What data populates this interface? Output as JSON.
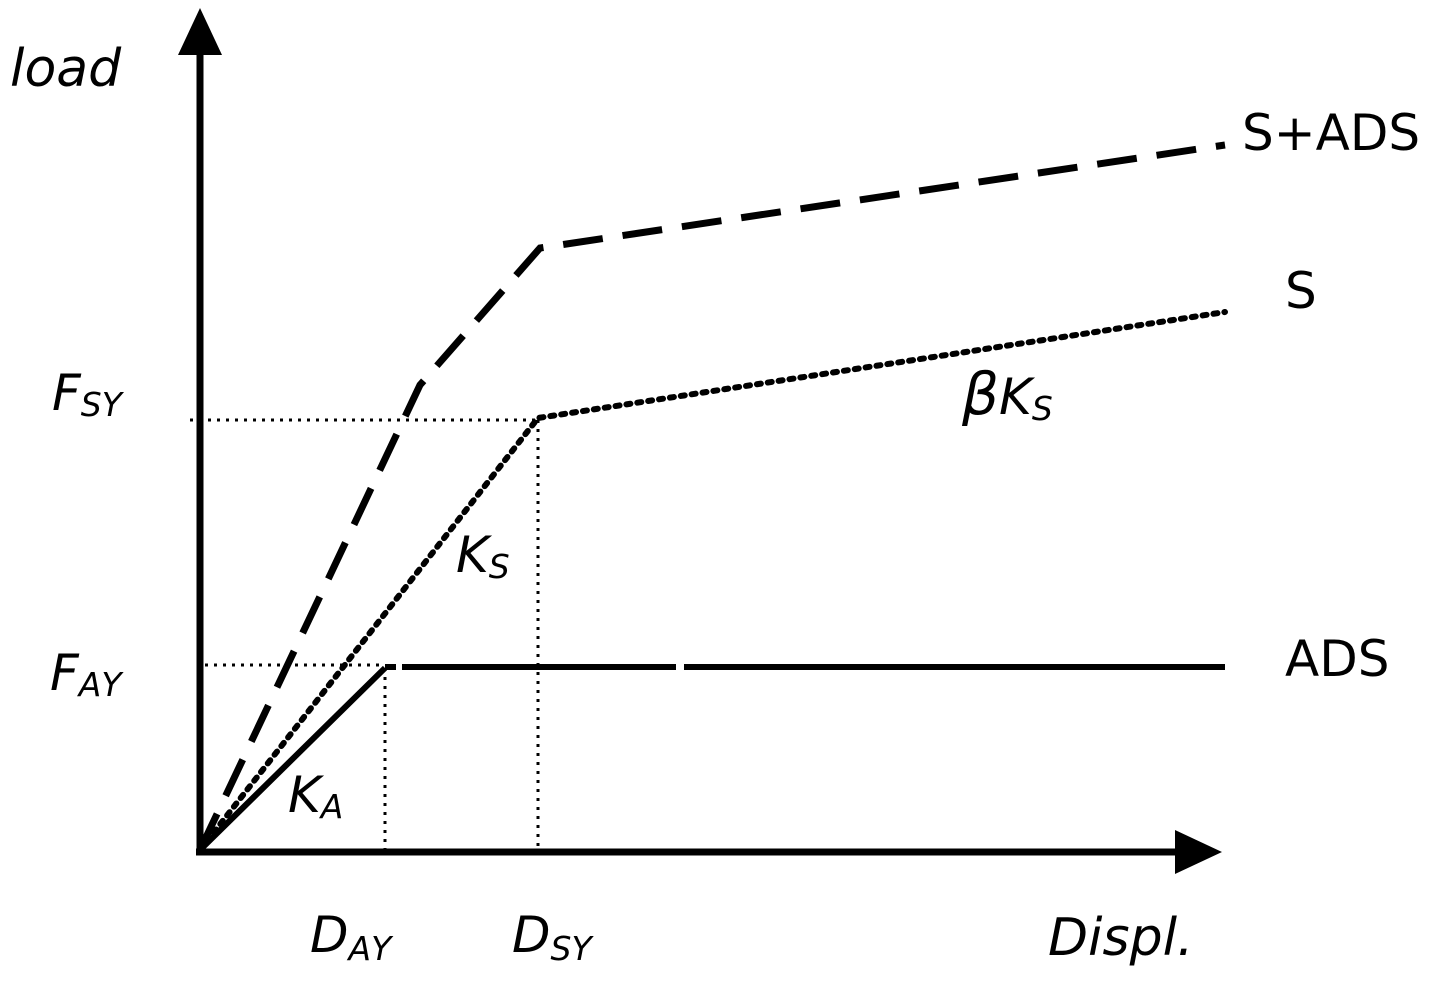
{
  "axes": {
    "y_label": "load",
    "x_label": "Displ."
  },
  "y_marks": [
    {
      "main": "F",
      "sub": "SY"
    },
    {
      "main": "F",
      "sub": "AY"
    }
  ],
  "x_marks": [
    {
      "main": "D",
      "sub": "AY"
    },
    {
      "main": "D",
      "sub": "SY"
    }
  ],
  "stiffness_labels": {
    "ks": {
      "main": "K",
      "sub": "S"
    },
    "beta_ks": {
      "beta": "β",
      "main": "K",
      "sub": "S"
    },
    "ka": {
      "main": "K",
      "sub": "A"
    }
  },
  "curves": [
    {
      "label": "S+ADS",
      "style": "dashed"
    },
    {
      "label": "S",
      "style": "dotted"
    },
    {
      "label": "ADS",
      "style": "solid"
    }
  ],
  "colors": {
    "ink": "#000000",
    "background": "#ffffff"
  }
}
